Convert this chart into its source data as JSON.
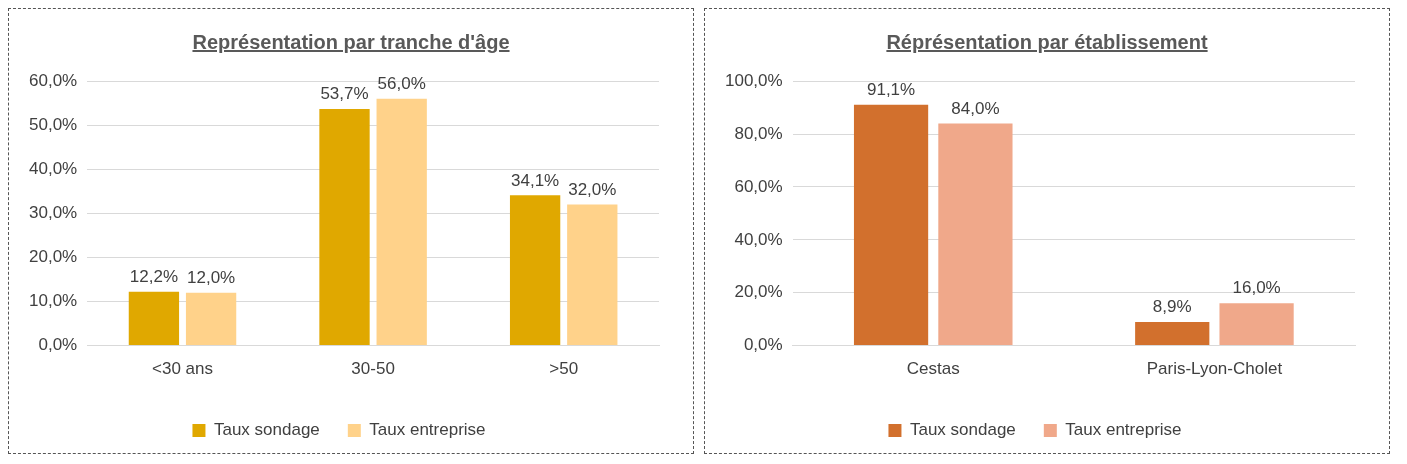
{
  "chart_data": [
    {
      "type": "bar",
      "title": "Représentation par tranche d'âge",
      "categories": [
        "<30 ans",
        "30-50",
        ">50"
      ],
      "series": [
        {
          "name": "Taux sondage",
          "color": "#e0a800",
          "values": [
            12.2,
            53.7,
            34.1
          ],
          "value_labels": [
            "12,2%",
            "53,7%",
            "34,1%"
          ]
        },
        {
          "name": "Taux entreprise",
          "color": "#ffd28a",
          "values": [
            12.0,
            56.0,
            32.0
          ],
          "value_labels": [
            "12,0%",
            "56,0%",
            "32,0%"
          ]
        }
      ],
      "ylim": [
        0,
        60
      ],
      "yticks": [
        {
          "value": 0,
          "label": "0,0%"
        },
        {
          "value": 10,
          "label": "10,0%"
        },
        {
          "value": 20,
          "label": "20,0%"
        },
        {
          "value": 30,
          "label": "30,0%"
        },
        {
          "value": 40,
          "label": "40,0%"
        },
        {
          "value": 50,
          "label": "50,0%"
        },
        {
          "value": 60,
          "label": "60,0%"
        }
      ],
      "grid": "y",
      "legend": "bottom"
    },
    {
      "type": "bar",
      "title": "Réprésentation par établissement",
      "categories": [
        "Cestas",
        "Paris-Lyon-Cholet"
      ],
      "series": [
        {
          "name": "Taux sondage",
          "color": "#d2702d",
          "values": [
            91.1,
            8.9
          ],
          "value_labels": [
            "91,1%",
            "8,9%"
          ]
        },
        {
          "name": "Taux entreprise",
          "color": "#f0a88a",
          "values": [
            84.0,
            16.0
          ],
          "value_labels": [
            "84,0%",
            "16,0%"
          ]
        }
      ],
      "ylim": [
        0,
        100
      ],
      "yticks": [
        {
          "value": 0,
          "label": "0,0%"
        },
        {
          "value": 20,
          "label": "20,0%"
        },
        {
          "value": 40,
          "label": "40,0%"
        },
        {
          "value": 60,
          "label": "60,0%"
        },
        {
          "value": 80,
          "label": "80,0%"
        },
        {
          "value": 100,
          "label": "100,0%"
        }
      ],
      "grid": "y",
      "legend": "bottom"
    }
  ]
}
